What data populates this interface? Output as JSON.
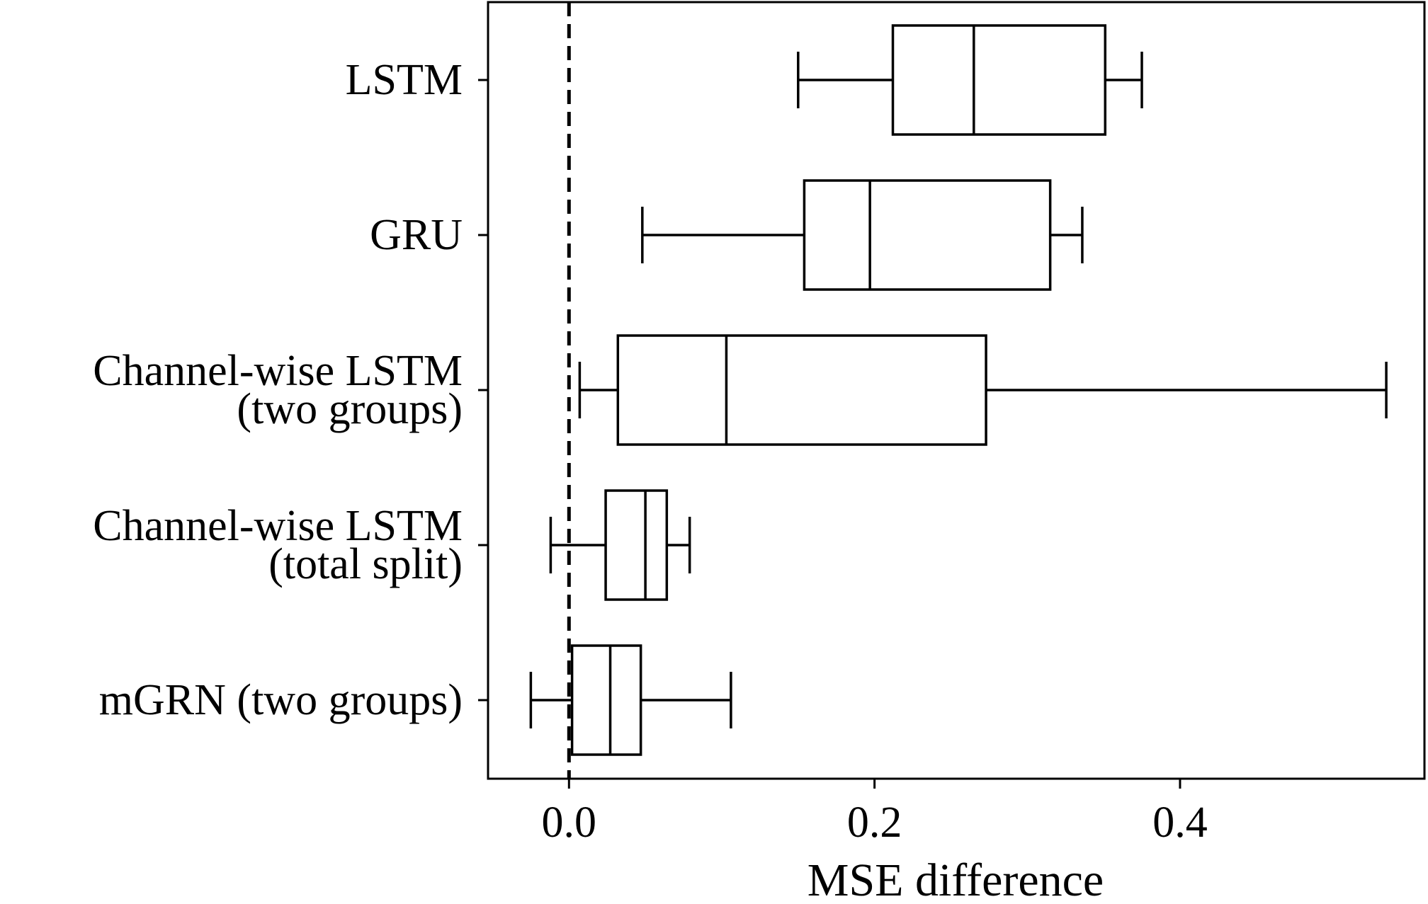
{
  "chart_data": {
    "type": "boxplot",
    "orientation": "horizontal",
    "title": "",
    "xlabel": "MSE difference",
    "ylabel": "",
    "xlim": [
      -0.053,
      0.56
    ],
    "xticks": [
      0.0,
      0.2,
      0.4
    ],
    "xtick_labels": [
      "0.0",
      "0.2",
      "0.4"
    ],
    "reference_line": {
      "x": 0.0,
      "style": "dashed"
    },
    "grid": false,
    "legend": "none",
    "series": [
      {
        "label_lines": [
          "LSTM"
        ],
        "whisker_low": 0.15,
        "q1": 0.212,
        "median": 0.265,
        "q3": 0.351,
        "whisker_high": 0.375
      },
      {
        "label_lines": [
          "GRU"
        ],
        "whisker_low": 0.048,
        "q1": 0.154,
        "median": 0.197,
        "q3": 0.315,
        "whisker_high": 0.336
      },
      {
        "label_lines": [
          "Channel-wise LSTM",
          "(two groups)"
        ],
        "whisker_low": 0.007,
        "q1": 0.032,
        "median": 0.103,
        "q3": 0.273,
        "whisker_high": 0.535
      },
      {
        "label_lines": [
          "Channel-wise LSTM",
          "(total split)"
        ],
        "whisker_low": -0.012,
        "q1": 0.024,
        "median": 0.05,
        "q3": 0.064,
        "whisker_high": 0.079
      },
      {
        "label_lines": [
          "mGRN (two groups)"
        ],
        "whisker_low": -0.025,
        "q1": 0.002,
        "median": 0.027,
        "q3": 0.047,
        "whisker_high": 0.106
      }
    ]
  }
}
